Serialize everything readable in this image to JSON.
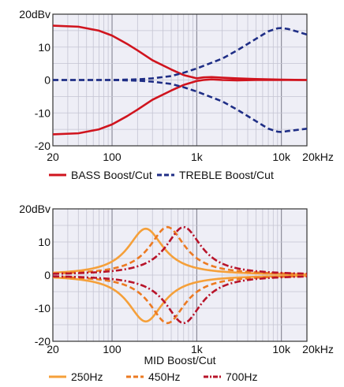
{
  "chart_data": [
    {
      "type": "line",
      "x_scale": "log",
      "xlim": [
        20,
        20000
      ],
      "ylim": [
        -20,
        20
      ],
      "grid": true,
      "legend_placement": "bottom",
      "x_tick_labels": [
        {
          "value": 20,
          "label": "20"
        },
        {
          "value": 100,
          "label": "100"
        },
        {
          "value": 1000,
          "label": "1k"
        },
        {
          "value": 10000,
          "label": "10k"
        },
        {
          "value": 20000,
          "label": "20kHz"
        }
      ],
      "y_tick_labels": [
        {
          "value": 20,
          "label": "20dBv"
        },
        {
          "value": 10,
          "label": "10"
        },
        {
          "value": 0,
          "label": "0"
        },
        {
          "value": -10,
          "label": "-10"
        },
        {
          "value": -20,
          "label": "-20"
        }
      ],
      "xlabel": "",
      "legend": [
        {
          "label": "BASS Boost/Cut",
          "color": "#d0141e",
          "dash": "solid"
        },
        {
          "label": "TREBLE Boost/Cut",
          "color": "#1f2e86",
          "dash": "dashed"
        }
      ],
      "series": [
        {
          "name": "BASS Boost/Cut",
          "color": "#d0141e",
          "dash": "solid",
          "points": [
            [
              20,
              16.5
            ],
            [
              40,
              16.2
            ],
            [
              70,
              15
            ],
            [
              100,
              13.5
            ],
            [
              150,
              11
            ],
            [
              200,
              9
            ],
            [
              300,
              6
            ],
            [
              500,
              3.2
            ],
            [
              700,
              1.5
            ],
            [
              1000,
              0.5
            ],
            [
              1200,
              0.8
            ],
            [
              1500,
              0.9
            ],
            [
              2000,
              0.7
            ],
            [
              3000,
              0.5
            ],
            [
              5000,
              0.3
            ],
            [
              10000,
              0.1
            ],
            [
              20000,
              0
            ]
          ]
        },
        {
          "name": "BASS Boost/Cut",
          "color": "#d0141e",
          "dash": "solid",
          "points": [
            [
              20,
              -16.5
            ],
            [
              40,
              -16.2
            ],
            [
              70,
              -15
            ],
            [
              100,
              -13.5
            ],
            [
              150,
              -11
            ],
            [
              200,
              -9
            ],
            [
              300,
              -6
            ],
            [
              500,
              -3.2
            ],
            [
              700,
              -1.5
            ],
            [
              1000,
              -0.3
            ],
            [
              1200,
              0
            ],
            [
              1500,
              0.2
            ],
            [
              2000,
              0
            ],
            [
              3000,
              -0.1
            ],
            [
              5000,
              0
            ],
            [
              10000,
              0
            ],
            [
              20000,
              0
            ]
          ]
        },
        {
          "name": "TREBLE Boost/Cut",
          "color": "#1f2e86",
          "dash": "dashed",
          "points": [
            [
              20,
              0
            ],
            [
              100,
              0
            ],
            [
              200,
              0.2
            ],
            [
              300,
              0.5
            ],
            [
              500,
              1.2
            ],
            [
              700,
              2.2
            ],
            [
              1000,
              3.5
            ],
            [
              2000,
              6.5
            ],
            [
              3000,
              9
            ],
            [
              5000,
              12.5
            ],
            [
              7000,
              14.8
            ],
            [
              9000,
              15.7
            ],
            [
              10000,
              15.8
            ],
            [
              12000,
              15.5
            ],
            [
              15000,
              14.8
            ],
            [
              20000,
              13.8
            ]
          ]
        },
        {
          "name": "TREBLE Boost/Cut",
          "color": "#1f2e86",
          "dash": "dashed",
          "points": [
            [
              20,
              0
            ],
            [
              100,
              0
            ],
            [
              200,
              -0.2
            ],
            [
              300,
              -0.5
            ],
            [
              500,
              -1.2
            ],
            [
              700,
              -2.2
            ],
            [
              1000,
              -3.5
            ],
            [
              2000,
              -6.5
            ],
            [
              3000,
              -9
            ],
            [
              5000,
              -12.5
            ],
            [
              7000,
              -14.8
            ],
            [
              9000,
              -15.7
            ],
            [
              10000,
              -15.8
            ],
            [
              12000,
              -15.5
            ],
            [
              15000,
              -15.2
            ],
            [
              20000,
              -14.8
            ]
          ]
        }
      ]
    },
    {
      "type": "line",
      "x_scale": "log",
      "xlim": [
        20,
        20000
      ],
      "ylim": [
        -20,
        20
      ],
      "grid": true,
      "legend_placement": "bottom",
      "x_tick_labels": [
        {
          "value": 20,
          "label": "20"
        },
        {
          "value": 100,
          "label": "100"
        },
        {
          "value": 1000,
          "label": "1k"
        },
        {
          "value": 10000,
          "label": "10k"
        },
        {
          "value": 20000,
          "label": "20kHz"
        }
      ],
      "y_tick_labels": [
        {
          "value": 20,
          "label": "20dBv"
        },
        {
          "value": 10,
          "label": "10"
        },
        {
          "value": 0,
          "label": "0"
        },
        {
          "value": -10,
          "label": "-10"
        },
        {
          "value": -20,
          "label": "-20"
        }
      ],
      "xlabel": "MID Boost/Cut",
      "legend": [
        {
          "label": "250Hz",
          "color": "#f5a03a",
          "dash": "solid"
        },
        {
          "label": "450Hz",
          "color": "#ec7a22",
          "dash": "dashed"
        },
        {
          "label": "700Hz",
          "color": "#b8142a",
          "dash": "dashdot"
        }
      ],
      "series": [
        {
          "name": "250Hz",
          "color": "#f5a03a",
          "dash": "solid",
          "center": 250,
          "peak": 14
        },
        {
          "name": "250Hz",
          "color": "#f5a03a",
          "dash": "solid",
          "center": 250,
          "peak": -14
        },
        {
          "name": "450Hz",
          "color": "#ec7a22",
          "dash": "dashed",
          "center": 450,
          "peak": 14.5
        },
        {
          "name": "450Hz",
          "color": "#ec7a22",
          "dash": "dashed",
          "center": 450,
          "peak": -14.5
        },
        {
          "name": "700Hz",
          "color": "#b8142a",
          "dash": "dashdot",
          "center": 700,
          "peak": 14.5
        },
        {
          "name": "700Hz",
          "color": "#b8142a",
          "dash": "dashdot",
          "center": 700,
          "peak": -14.5
        }
      ]
    }
  ]
}
